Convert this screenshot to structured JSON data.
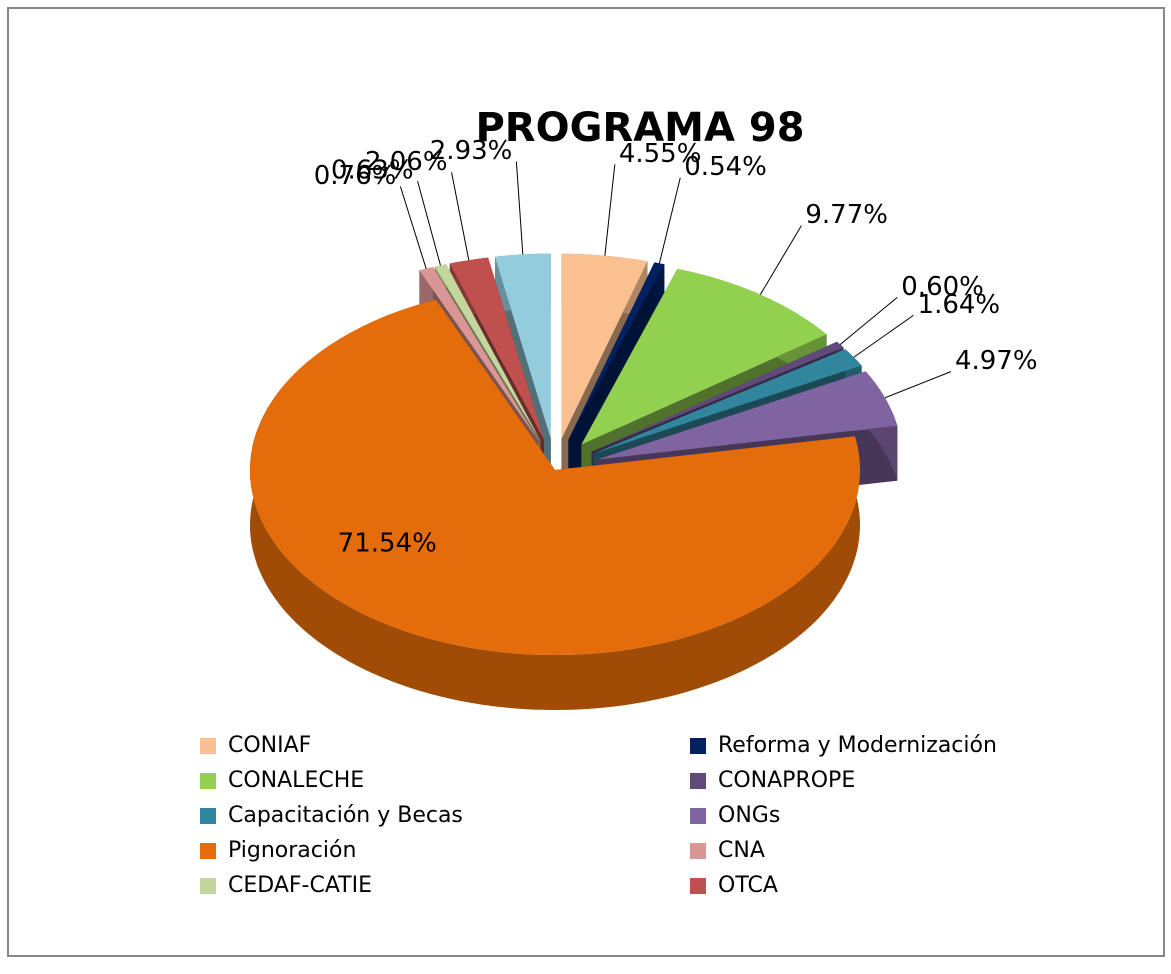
{
  "chart_data": {
    "type": "pie",
    "title": "PROGRAMA 98",
    "categories": [
      "CONIAF",
      "Reforma y Modernización",
      "CONALECHE",
      "CONAPROPE",
      "Capacitación y Becas",
      "ONGs",
      "Pignoración",
      "CNA",
      "CEDAF-CATIE",
      "OTCA",
      null
    ],
    "values": [
      4.55,
      0.54,
      9.77,
      0.6,
      1.64,
      4.97,
      71.54,
      0.76,
      0.63,
      2.06,
      2.93
    ],
    "value_labels": [
      "4.55%",
      "0.54%",
      "9.77%",
      "0.60%",
      "1.64%",
      "4.97%",
      "71.54%",
      "0.76%",
      "0.63%",
      "2.06%",
      "2.93%"
    ],
    "colors": [
      "#fac090",
      "#002060",
      "#92d050",
      "#604a7b",
      "#31859c",
      "#8064a2",
      "#e46c0a",
      "#d99694",
      "#c3d69b",
      "#c0504d",
      "#93cddd"
    ]
  }
}
